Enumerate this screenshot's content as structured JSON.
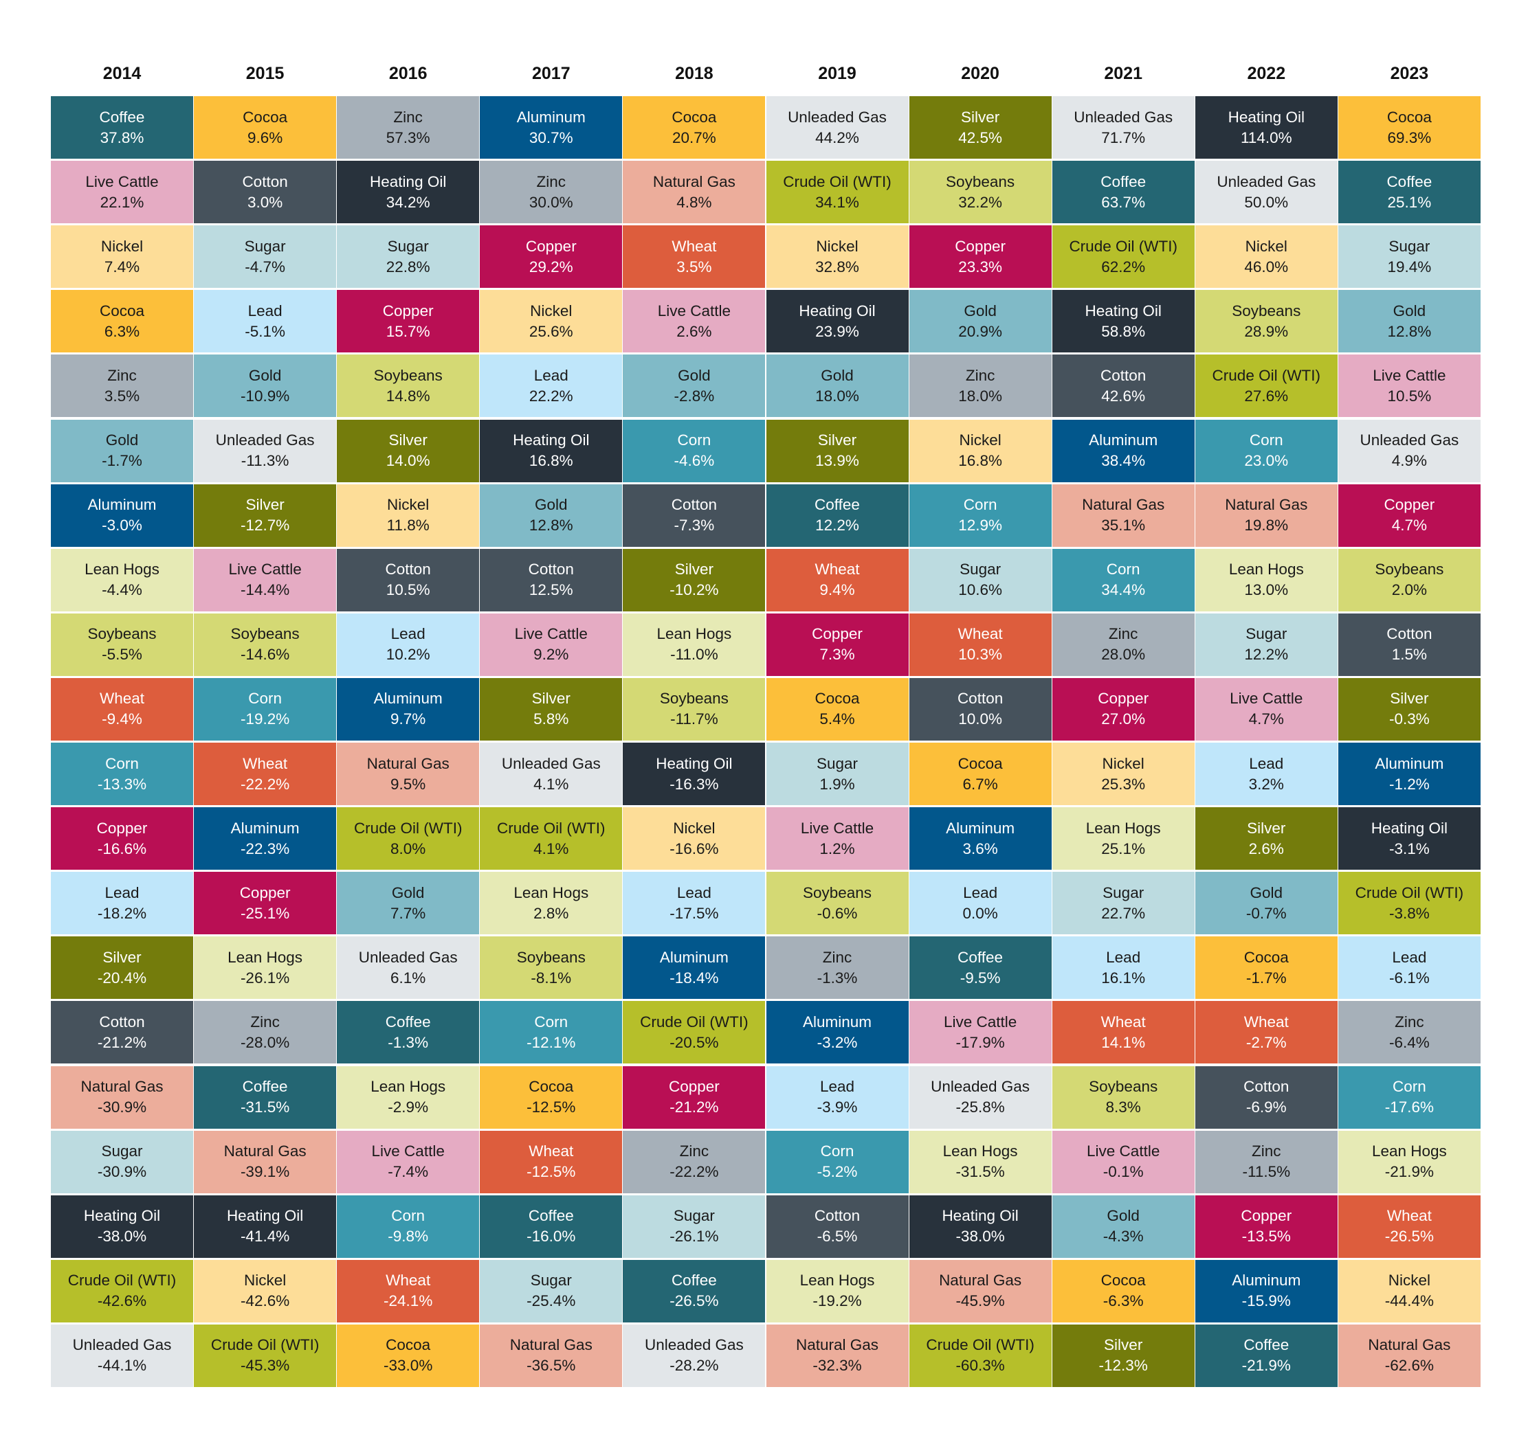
{
  "chart_data": {
    "type": "table",
    "title": "",
    "years": [
      "2014",
      "2015",
      "2016",
      "2017",
      "2018",
      "2019",
      "2020",
      "2021",
      "2022",
      "2023"
    ],
    "columns": [
      [
        [
          "Coffee",
          "37.8%"
        ],
        [
          "Live Cattle",
          "22.1%"
        ],
        [
          "Nickel",
          "7.4%"
        ],
        [
          "Cocoa",
          "6.3%"
        ],
        [
          "Zinc",
          "3.5%"
        ],
        [
          "Gold",
          "-1.7%"
        ],
        [
          "Aluminum",
          "-3.0%"
        ],
        [
          "Lean Hogs",
          "-4.4%"
        ],
        [
          "Soybeans",
          "-5.5%"
        ],
        [
          "Wheat",
          "-9.4%"
        ],
        [
          "Corn",
          "-13.3%"
        ],
        [
          "Copper",
          "-16.6%"
        ],
        [
          "Lead",
          "-18.2%"
        ],
        [
          "Silver",
          "-20.4%"
        ],
        [
          "Cotton",
          "-21.2%"
        ],
        [
          "Natural Gas",
          "-30.9%"
        ],
        [
          "Sugar",
          "-30.9%"
        ],
        [
          "Heating Oil",
          "-38.0%"
        ],
        [
          "Crude Oil (WTI)",
          "-42.6%"
        ],
        [
          "Unleaded Gas",
          "-44.1%"
        ]
      ],
      [
        [
          "Cocoa",
          "9.6%"
        ],
        [
          "Cotton",
          "3.0%"
        ],
        [
          "Sugar",
          "-4.7%"
        ],
        [
          "Lead",
          "-5.1%"
        ],
        [
          "Gold",
          "-10.9%"
        ],
        [
          "Unleaded Gas",
          "-11.3%"
        ],
        [
          "Silver",
          "-12.7%"
        ],
        [
          "Live Cattle",
          "-14.4%"
        ],
        [
          "Soybeans",
          "-14.6%"
        ],
        [
          "Corn",
          "-19.2%"
        ],
        [
          "Wheat",
          "-22.2%"
        ],
        [
          "Aluminum",
          "-22.3%"
        ],
        [
          "Copper",
          "-25.1%"
        ],
        [
          "Lean Hogs",
          "-26.1%"
        ],
        [
          "Zinc",
          "-28.0%"
        ],
        [
          "Coffee",
          "-31.5%"
        ],
        [
          "Natural Gas",
          "-39.1%"
        ],
        [
          "Heating Oil",
          "-41.4%"
        ],
        [
          "Nickel",
          "-42.6%"
        ],
        [
          "Crude Oil (WTI)",
          "-45.3%"
        ]
      ],
      [
        [
          "Zinc",
          "57.3%"
        ],
        [
          "Heating Oil",
          "34.2%"
        ],
        [
          "Sugar",
          "22.8%"
        ],
        [
          "Copper",
          "15.7%"
        ],
        [
          "Soybeans",
          "14.8%"
        ],
        [
          "Silver",
          "14.0%"
        ],
        [
          "Nickel",
          "11.8%"
        ],
        [
          "Cotton",
          "10.5%"
        ],
        [
          "Lead",
          "10.2%"
        ],
        [
          "Aluminum",
          "9.7%"
        ],
        [
          "Natural Gas",
          "9.5%"
        ],
        [
          "Crude Oil (WTI)",
          "8.0%"
        ],
        [
          "Gold",
          "7.7%"
        ],
        [
          "Unleaded Gas",
          "6.1%"
        ],
        [
          "Coffee",
          "-1.3%"
        ],
        [
          "Lean Hogs",
          "-2.9%"
        ],
        [
          "Live Cattle",
          "-7.4%"
        ],
        [
          "Corn",
          "-9.8%"
        ],
        [
          "Wheat",
          "-24.1%"
        ],
        [
          "Cocoa",
          "-33.0%"
        ]
      ],
      [
        [
          "Aluminum",
          "30.7%"
        ],
        [
          "Zinc",
          "30.0%"
        ],
        [
          "Copper",
          "29.2%"
        ],
        [
          "Nickel",
          "25.6%"
        ],
        [
          "Lead",
          "22.2%"
        ],
        [
          "Heating Oil",
          "16.8%"
        ],
        [
          "Gold",
          "12.8%"
        ],
        [
          "Cotton",
          "12.5%"
        ],
        [
          "Live Cattle",
          "9.2%"
        ],
        [
          "Silver",
          "5.8%"
        ],
        [
          "Unleaded Gas",
          "4.1%"
        ],
        [
          "Crude Oil (WTI)",
          "4.1%"
        ],
        [
          "Lean Hogs",
          "2.8%"
        ],
        [
          "Soybeans",
          "-8.1%"
        ],
        [
          "Corn",
          "-12.1%"
        ],
        [
          "Cocoa",
          "-12.5%"
        ],
        [
          "Wheat",
          "-12.5%"
        ],
        [
          "Coffee",
          "-16.0%"
        ],
        [
          "Sugar",
          "-25.4%"
        ],
        [
          "Natural Gas",
          "-36.5%"
        ]
      ],
      [
        [
          "Cocoa",
          "20.7%"
        ],
        [
          "Natural Gas",
          "4.8%"
        ],
        [
          "Wheat",
          "3.5%"
        ],
        [
          "Live Cattle",
          "2.6%"
        ],
        [
          "Gold",
          "-2.8%"
        ],
        [
          "Corn",
          "-4.6%"
        ],
        [
          "Cotton",
          "-7.3%"
        ],
        [
          "Silver",
          "-10.2%"
        ],
        [
          "Lean Hogs",
          "-11.0%"
        ],
        [
          "Soybeans",
          "-11.7%"
        ],
        [
          "Heating Oil",
          "-16.3%"
        ],
        [
          "Nickel",
          "-16.6%"
        ],
        [
          "Lead",
          "-17.5%"
        ],
        [
          "Aluminum",
          "-18.4%"
        ],
        [
          "Crude Oil (WTI)",
          "-20.5%"
        ],
        [
          "Copper",
          "-21.2%"
        ],
        [
          "Zinc",
          "-22.2%"
        ],
        [
          "Sugar",
          "-26.1%"
        ],
        [
          "Coffee",
          "-26.5%"
        ],
        [
          "Unleaded Gas",
          "-28.2%"
        ]
      ],
      [
        [
          "Unleaded Gas",
          "44.2%"
        ],
        [
          "Crude Oil (WTI)",
          "34.1%"
        ],
        [
          "Nickel",
          "32.8%"
        ],
        [
          "Heating Oil",
          "23.9%"
        ],
        [
          "Gold",
          "18.0%"
        ],
        [
          "Silver",
          "13.9%"
        ],
        [
          "Coffee",
          "12.2%"
        ],
        [
          "Wheat",
          "9.4%"
        ],
        [
          "Copper",
          "7.3%"
        ],
        [
          "Cocoa",
          "5.4%"
        ],
        [
          "Sugar",
          "1.9%"
        ],
        [
          "Live Cattle",
          "1.2%"
        ],
        [
          "Soybeans",
          "-0.6%"
        ],
        [
          "Zinc",
          "-1.3%"
        ],
        [
          "Aluminum",
          "-3.2%"
        ],
        [
          "Lead",
          "-3.9%"
        ],
        [
          "Corn",
          "-5.2%"
        ],
        [
          "Cotton",
          "-6.5%"
        ],
        [
          "Lean Hogs",
          "-19.2%"
        ],
        [
          "Natural Gas",
          "-32.3%"
        ]
      ],
      [
        [
          "Silver",
          "42.5%"
        ],
        [
          "Soybeans",
          "32.2%"
        ],
        [
          "Copper",
          "23.3%"
        ],
        [
          "Gold",
          "20.9%"
        ],
        [
          "Zinc",
          "18.0%"
        ],
        [
          "Nickel",
          "16.8%"
        ],
        [
          "Corn",
          "12.9%"
        ],
        [
          "Sugar",
          "10.6%"
        ],
        [
          "Wheat",
          "10.3%"
        ],
        [
          "Cotton",
          "10.0%"
        ],
        [
          "Cocoa",
          "6.7%"
        ],
        [
          "Aluminum",
          "3.6%"
        ],
        [
          "Lead",
          "0.0%"
        ],
        [
          "Coffee",
          "-9.5%"
        ],
        [
          "Live Cattle",
          "-17.9%"
        ],
        [
          "Unleaded Gas",
          "-25.8%"
        ],
        [
          "Lean Hogs",
          "-31.5%"
        ],
        [
          "Heating Oil",
          "-38.0%"
        ],
        [
          "Natural Gas",
          "-45.9%"
        ],
        [
          "Crude Oil (WTI)",
          "-60.3%"
        ]
      ],
      [
        [
          "Unleaded Gas",
          "71.7%"
        ],
        [
          "Coffee",
          "63.7%"
        ],
        [
          "Crude Oil (WTI)",
          "62.2%"
        ],
        [
          "Heating Oil",
          "58.8%"
        ],
        [
          "Cotton",
          "42.6%"
        ],
        [
          "Aluminum",
          "38.4%"
        ],
        [
          "Natural Gas",
          "35.1%"
        ],
        [
          "Corn",
          "34.4%"
        ],
        [
          "Zinc",
          "28.0%"
        ],
        [
          "Copper",
          "27.0%"
        ],
        [
          "Nickel",
          "25.3%"
        ],
        [
          "Lean Hogs",
          "25.1%"
        ],
        [
          "Sugar",
          "22.7%"
        ],
        [
          "Lead",
          "16.1%"
        ],
        [
          "Wheat",
          "14.1%"
        ],
        [
          "Soybeans",
          "8.3%"
        ],
        [
          "Live Cattle",
          "-0.1%"
        ],
        [
          "Gold",
          "-4.3%"
        ],
        [
          "Cocoa",
          "-6.3%"
        ],
        [
          "Silver",
          "-12.3%"
        ]
      ],
      [
        [
          "Heating Oil",
          "114.0%"
        ],
        [
          "Unleaded Gas",
          "50.0%"
        ],
        [
          "Nickel",
          "46.0%"
        ],
        [
          "Soybeans",
          "28.9%"
        ],
        [
          "Crude Oil (WTI)",
          "27.6%"
        ],
        [
          "Corn",
          "23.0%"
        ],
        [
          "Natural Gas",
          "19.8%"
        ],
        [
          "Lean Hogs",
          "13.0%"
        ],
        [
          "Sugar",
          "12.2%"
        ],
        [
          "Live Cattle",
          "4.7%"
        ],
        [
          "Lead",
          "3.2%"
        ],
        [
          "Silver",
          "2.6%"
        ],
        [
          "Gold",
          "-0.7%"
        ],
        [
          "Cocoa",
          "-1.7%"
        ],
        [
          "Wheat",
          "-2.7%"
        ],
        [
          "Cotton",
          "-6.9%"
        ],
        [
          "Zinc",
          "-11.5%"
        ],
        [
          "Copper",
          "-13.5%"
        ],
        [
          "Aluminum",
          "-15.9%"
        ],
        [
          "Coffee",
          "-21.9%"
        ]
      ],
      [
        [
          "Cocoa",
          "69.3%"
        ],
        [
          "Coffee",
          "25.1%"
        ],
        [
          "Sugar",
          "19.4%"
        ],
        [
          "Gold",
          "12.8%"
        ],
        [
          "Live Cattle",
          "10.5%"
        ],
        [
          "Unleaded Gas",
          "4.9%"
        ],
        [
          "Copper",
          "4.7%"
        ],
        [
          "Soybeans",
          "2.0%"
        ],
        [
          "Cotton",
          "1.5%"
        ],
        [
          "Silver",
          "-0.3%"
        ],
        [
          "Aluminum",
          "-1.2%"
        ],
        [
          "Heating Oil",
          "-3.1%"
        ],
        [
          "Crude Oil (WTI)",
          "-3.8%"
        ],
        [
          "Lead",
          "-6.1%"
        ],
        [
          "Zinc",
          "-6.4%"
        ],
        [
          "Corn",
          "-17.6%"
        ],
        [
          "Lean Hogs",
          "-21.9%"
        ],
        [
          "Wheat",
          "-26.5%"
        ],
        [
          "Nickel",
          "-44.4%"
        ],
        [
          "Natural Gas",
          "-62.6%"
        ]
      ]
    ],
    "colors": {
      "Coffee": "#246673",
      "Cocoa": "#fcbf3a",
      "Zinc": "#a6b0b9",
      "Aluminum": "#02578c",
      "Unleaded Gas": "#e2e6e9",
      "Silver": "#747c0c",
      "Heating Oil": "#28323c",
      "Live Cattle": "#e5abc3",
      "Cotton": "#46525c",
      "Natural Gas": "#ecad9b",
      "Crude Oil (WTI)": "#b6bf2a",
      "Soybeans": "#d4d974",
      "Nickel": "#fddd98",
      "Sugar": "#bcdbe0",
      "Copper": "#b90f54",
      "Wheat": "#dd5d3d",
      "Lead": "#bfe6fa",
      "Gold": "#80bac7",
      "Corn": "#3a99ae",
      "Lean Hogs": "#e6eab5"
    },
    "text_colors": {
      "Coffee": "#ffffff",
      "Cocoa": "#1a1a1a",
      "Zinc": "#1a1a1a",
      "Aluminum": "#ffffff",
      "Unleaded Gas": "#1a1a1a",
      "Silver": "#ffffff",
      "Heating Oil": "#ffffff",
      "Live Cattle": "#1a1a1a",
      "Cotton": "#ffffff",
      "Natural Gas": "#1a1a1a",
      "Crude Oil (WTI)": "#1a1a1a",
      "Soybeans": "#1a1a1a",
      "Nickel": "#1a1a1a",
      "Sugar": "#1a1a1a",
      "Copper": "#ffffff",
      "Wheat": "#ffffff",
      "Lead": "#1a1a1a",
      "Gold": "#1a1a1a",
      "Corn": "#ffffff",
      "Lean Hogs": "#1a1a1a"
    }
  }
}
